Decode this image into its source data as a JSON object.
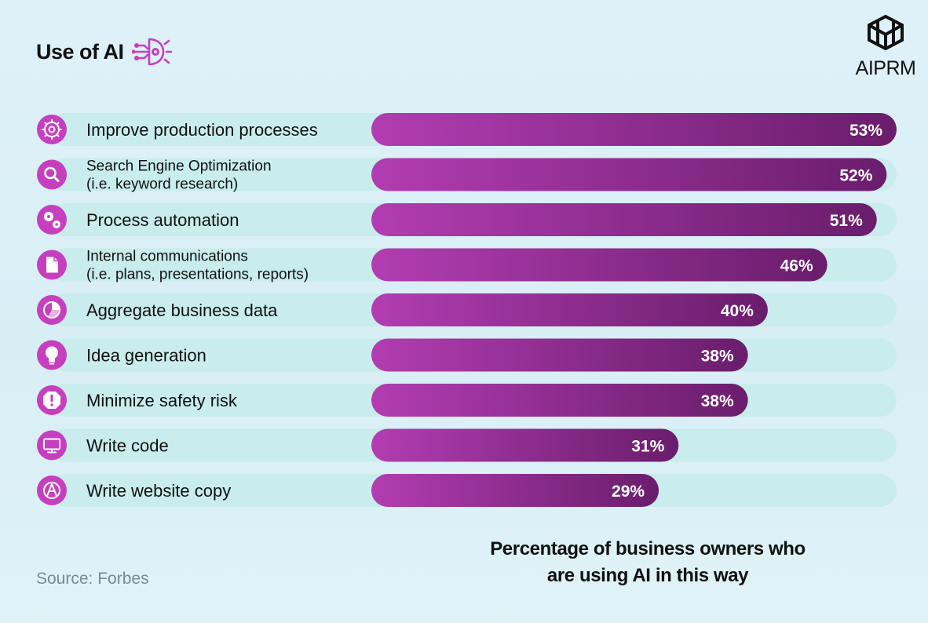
{
  "header": {
    "title": "Use of AI"
  },
  "brand": {
    "name": "AIPRM"
  },
  "footer": {
    "source": "Source: Forbes",
    "caption_line1": "Percentage of business owners who",
    "caption_line2": "are using AI in this way"
  },
  "colors": {
    "accent": "#c63fbf",
    "bar_start": "#b23db2",
    "bar_end": "#6a1d6c",
    "track": "#c9ecec",
    "text": "#111111"
  },
  "chart_data": {
    "type": "bar",
    "orientation": "horizontal",
    "categories": [
      [
        "Improve production processes"
      ],
      [
        "Search Engine Optimization",
        "(i.e. keyword research)"
      ],
      [
        "Process automation"
      ],
      [
        "Internal communications",
        "(i.e. plans, presentations, reports)"
      ],
      [
        "Aggregate business data"
      ],
      [
        "Idea generation"
      ],
      [
        "Minimize safety risk"
      ],
      [
        "Write code"
      ],
      [
        "Write website copy"
      ]
    ],
    "icons": [
      "gear-icon",
      "search-icon",
      "gears-icon",
      "document-icon",
      "pie-chart-icon",
      "lightbulb-icon",
      "alert-icon",
      "monitor-icon",
      "pen-icon"
    ],
    "values": [
      53,
      52,
      51,
      46,
      40,
      38,
      38,
      31,
      29
    ],
    "value_labels": [
      "53%",
      "52%",
      "51%",
      "46%",
      "40%",
      "38%",
      "38%",
      "31%",
      "29%"
    ],
    "unit": "%",
    "xlim": [
      0,
      53
    ]
  }
}
